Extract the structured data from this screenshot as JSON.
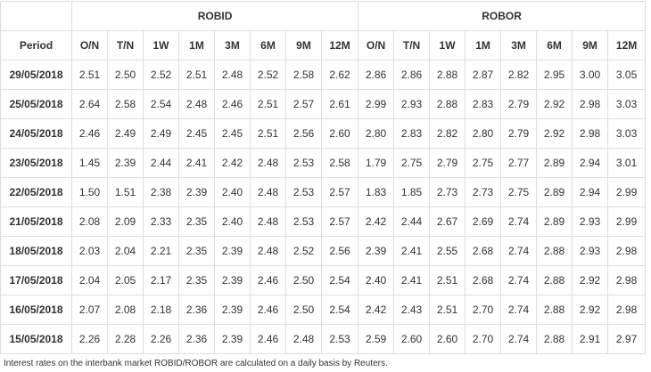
{
  "table": {
    "group_headers": [
      "ROBID",
      "ROBOR"
    ],
    "period_label": "Period",
    "tenors": [
      "O/N",
      "T/N",
      "1W",
      "1M",
      "3M",
      "6M",
      "9M",
      "12M"
    ],
    "rows": [
      {
        "date": "29/05/2018",
        "robid": [
          "2.51",
          "2.50",
          "2.52",
          "2.51",
          "2.48",
          "2.52",
          "2.58",
          "2.62"
        ],
        "robor": [
          "2.86",
          "2.86",
          "2.88",
          "2.87",
          "2.82",
          "2.95",
          "3.00",
          "3.05"
        ]
      },
      {
        "date": "25/05/2018",
        "robid": [
          "2.64",
          "2.58",
          "2.54",
          "2.48",
          "2.46",
          "2.51",
          "2.57",
          "2.61"
        ],
        "robor": [
          "2.99",
          "2.93",
          "2.88",
          "2.83",
          "2.79",
          "2.92",
          "2.98",
          "3.03"
        ]
      },
      {
        "date": "24/05/2018",
        "robid": [
          "2.46",
          "2.49",
          "2.49",
          "2.45",
          "2.45",
          "2.51",
          "2.56",
          "2.60"
        ],
        "robor": [
          "2.80",
          "2.83",
          "2.82",
          "2.80",
          "2.79",
          "2.92",
          "2.98",
          "3.03"
        ]
      },
      {
        "date": "23/05/2018",
        "robid": [
          "1.45",
          "2.39",
          "2.44",
          "2.41",
          "2.42",
          "2.48",
          "2.53",
          "2.58"
        ],
        "robor": [
          "1.79",
          "2.75",
          "2.79",
          "2.75",
          "2.77",
          "2.89",
          "2.94",
          "3.01"
        ]
      },
      {
        "date": "22/05/2018",
        "robid": [
          "1.50",
          "1.51",
          "2.38",
          "2.39",
          "2.40",
          "2.48",
          "2.53",
          "2.57"
        ],
        "robor": [
          "1.83",
          "1.85",
          "2.73",
          "2.73",
          "2.75",
          "2.89",
          "2.94",
          "2.99"
        ]
      },
      {
        "date": "21/05/2018",
        "robid": [
          "2.08",
          "2.09",
          "2.33",
          "2.35",
          "2.40",
          "2.48",
          "2.53",
          "2.57"
        ],
        "robor": [
          "2.42",
          "2.44",
          "2.67",
          "2.69",
          "2.74",
          "2.89",
          "2.93",
          "2.99"
        ]
      },
      {
        "date": "18/05/2018",
        "robid": [
          "2.03",
          "2.04",
          "2.21",
          "2.35",
          "2.39",
          "2.48",
          "2.52",
          "2.56"
        ],
        "robor": [
          "2.39",
          "2.41",
          "2.55",
          "2.68",
          "2.74",
          "2.88",
          "2.93",
          "2.98"
        ]
      },
      {
        "date": "17/05/2018",
        "robid": [
          "2.04",
          "2.05",
          "2.17",
          "2.35",
          "2.39",
          "2.46",
          "2.50",
          "2.54"
        ],
        "robor": [
          "2.40",
          "2.41",
          "2.51",
          "2.68",
          "2.74",
          "2.88",
          "2.92",
          "2.98"
        ]
      },
      {
        "date": "16/05/2018",
        "robid": [
          "2.07",
          "2.08",
          "2.18",
          "2.36",
          "2.39",
          "2.46",
          "2.50",
          "2.54"
        ],
        "robor": [
          "2.42",
          "2.43",
          "2.51",
          "2.70",
          "2.74",
          "2.88",
          "2.92",
          "2.98"
        ]
      },
      {
        "date": "15/05/2018",
        "robid": [
          "2.26",
          "2.28",
          "2.26",
          "2.36",
          "2.39",
          "2.46",
          "2.48",
          "2.53"
        ],
        "robor": [
          "2.59",
          "2.60",
          "2.60",
          "2.70",
          "2.74",
          "2.88",
          "2.91",
          "2.97"
        ]
      }
    ]
  },
  "footnote": "Interest rates on the interbank market ROBID/ROBOR are calculated on a daily basis by Reuters."
}
